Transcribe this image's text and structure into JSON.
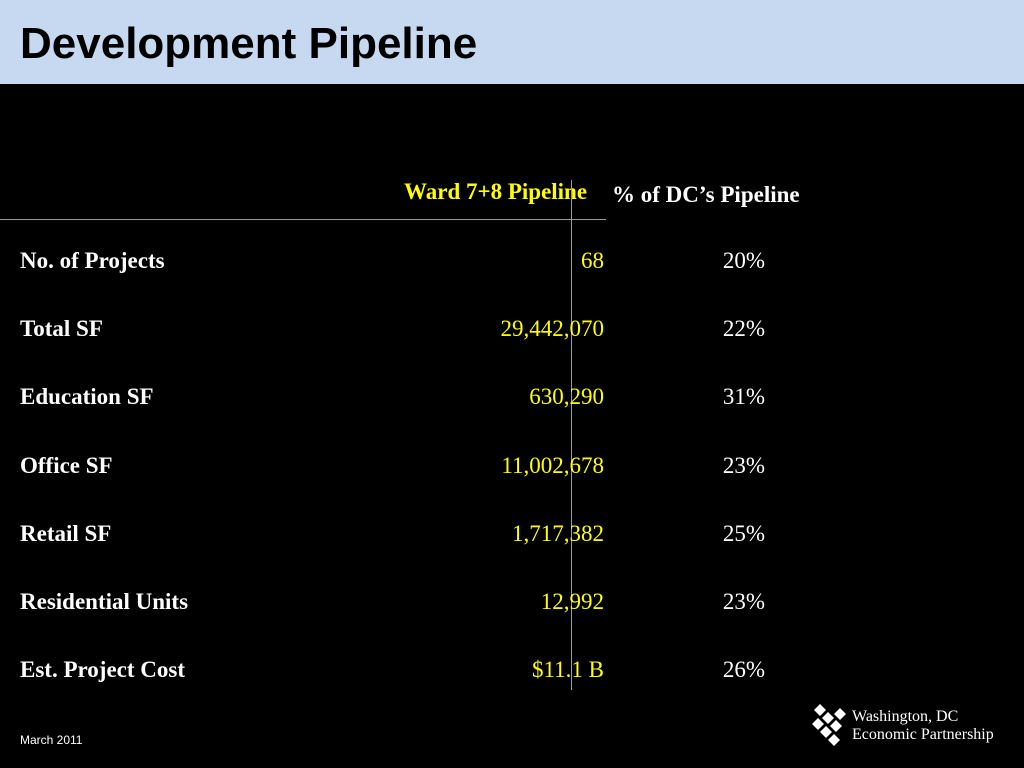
{
  "slide": {
    "title": "Development Pipeline"
  },
  "table": {
    "headers": {
      "ward_pipeline": "Ward 7+8 Pipeline",
      "dc_share": "% of DC’s Pipeline"
    },
    "rows": [
      {
        "label": "No. of Projects",
        "value": "68",
        "pct": "20%"
      },
      {
        "label": "Total SF",
        "value": "29,442,070",
        "pct": "22%"
      },
      {
        "label": "Education SF",
        "value": "630,290",
        "pct": "31%"
      },
      {
        "label": "Office SF",
        "value": "11,002,678",
        "pct": "23%"
      },
      {
        "label": "Retail SF",
        "value": "1,717,382",
        "pct": "25%"
      },
      {
        "label": "Residential Units",
        "value": "12,992",
        "pct": "23%"
      },
      {
        "label": "Est. Project Cost",
        "value": "$11.1 B",
        "pct": "26%"
      }
    ]
  },
  "footer": {
    "date": "March 2011",
    "logo_line1": "Washington, DC",
    "logo_line2": "Economic Partnership",
    "logo_icon": "diamond-cluster-icon"
  },
  "colors": {
    "header_bg": "#c6d9f1",
    "background": "#000000",
    "accent": "#ffff00",
    "text": "#ffffff"
  }
}
